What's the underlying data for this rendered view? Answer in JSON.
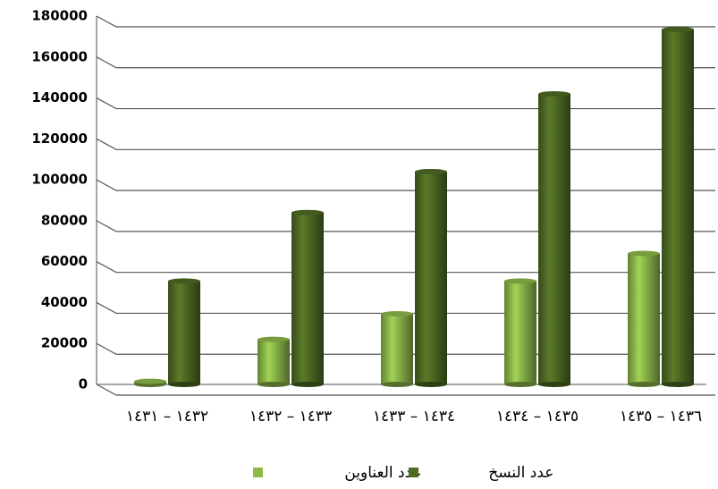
{
  "chart_data": {
    "type": "bar",
    "categories": [
      "١٤٣٢ – ١٤٣١",
      "١٤٣٣ – ١٤٣٢",
      "١٤٣٤ – ١٤٣٣",
      "١٤٣٥ – ١٤٣٤",
      "١٤٣٦ – ١٤٣٥"
    ],
    "series": [
      {
        "name": "عدد العناوين",
        "color": "#8db84a",
        "values": [
          1500,
          22000,
          34500,
          50500,
          64000
        ]
      },
      {
        "name": "عدد النسخ",
        "color": "#4f6b23",
        "values": [
          50500,
          84000,
          104000,
          142000,
          173500
        ]
      }
    ],
    "ylim": [
      0,
      180000
    ],
    "yticks": [
      0,
      20000,
      40000,
      60000,
      80000,
      100000,
      120000,
      140000,
      160000,
      180000
    ],
    "grid": true
  }
}
